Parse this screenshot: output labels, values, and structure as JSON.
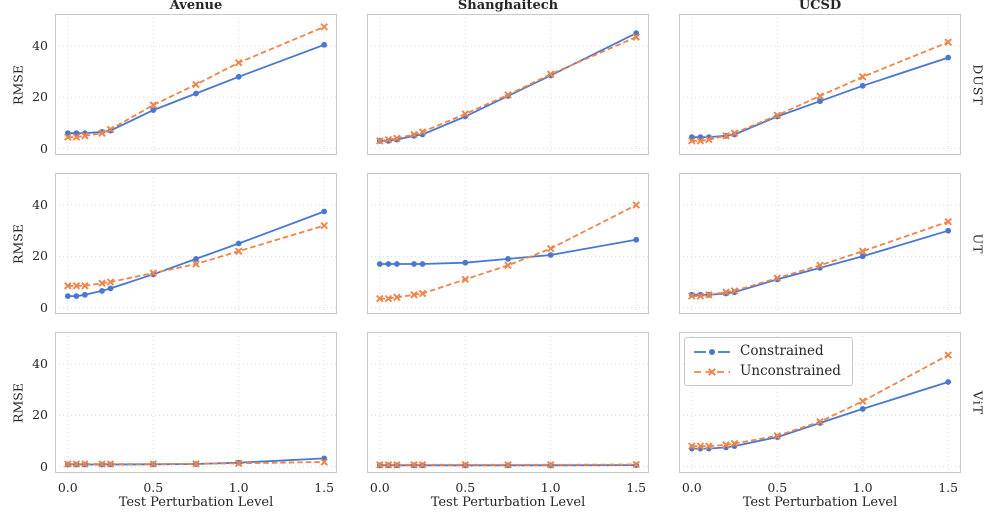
{
  "chart_data": {
    "type": "line",
    "layout": "3x3 grid of subplots, shared axes",
    "col_titles": [
      "Avenue",
      "Shanghaitech",
      "UCSD"
    ],
    "row_labels": [
      "DUST",
      "UT",
      "ViT"
    ],
    "xlabel": "Test Perturbation Level",
    "ylabel": "RMSE",
    "x": [
      0,
      0.05,
      0.1,
      0.2,
      0.25,
      0.5,
      0.75,
      1.0,
      1.5
    ],
    "xticks": [
      0,
      0.5,
      1.0,
      1.5
    ],
    "xtick_labels": [
      "0.0",
      "0.5",
      "1.0",
      "1.5"
    ],
    "yticks": [
      0,
      20,
      40
    ],
    "ytick_labels": [
      "0",
      "20",
      "40"
    ],
    "xlim": [
      -0.075,
      1.575
    ],
    "ylim": [
      -2.5,
      52.5
    ],
    "grid_on": true,
    "grid_style": "light dotted",
    "legend": {
      "location": "upper-left of bottom-right subplot",
      "entries": [
        {
          "label": "Constrained",
          "color": "#4878d0",
          "line": "solid",
          "marker": "circle"
        },
        {
          "label": "Unconstrained",
          "color": "#ee854a",
          "line": "dashed",
          "marker": "x"
        }
      ]
    },
    "cells": [
      {
        "dataset": "Avenue",
        "model": "DUST",
        "constrained": [
          6,
          6,
          6,
          6.5,
          7,
          15,
          21.5,
          28,
          40.5
        ],
        "unconstrained": [
          4.5,
          4.5,
          5,
          6,
          7.5,
          17,
          25,
          33.5,
          47.5
        ]
      },
      {
        "dataset": "Shanghaitech",
        "model": "DUST",
        "constrained": [
          3,
          3,
          3.5,
          5,
          5.5,
          12.5,
          20.5,
          28.5,
          45
        ],
        "unconstrained": [
          3,
          3.5,
          4,
          5.5,
          6.5,
          13.5,
          21,
          29,
          43.5
        ]
      },
      {
        "dataset": "UCSD",
        "model": "DUST",
        "constrained": [
          4.5,
          4.5,
          4.5,
          5,
          5.5,
          12.5,
          18.5,
          24.5,
          35.5
        ],
        "unconstrained": [
          3,
          3,
          3.5,
          5,
          6,
          13,
          20.5,
          28,
          41.5
        ]
      },
      {
        "dataset": "Avenue",
        "model": "UT",
        "constrained": [
          4.5,
          4.5,
          5,
          6.5,
          7.5,
          13,
          19,
          25,
          37.5
        ],
        "unconstrained": [
          8.5,
          8.5,
          8.5,
          9.5,
          10,
          13.5,
          17,
          22,
          32
        ]
      },
      {
        "dataset": "Shanghaitech",
        "model": "UT",
        "constrained": [
          17,
          17,
          17,
          17,
          17,
          17.5,
          19,
          20.5,
          26.5
        ],
        "unconstrained": [
          3.5,
          3.5,
          4,
          5,
          5.5,
          11,
          16.5,
          23,
          40
        ]
      },
      {
        "dataset": "UCSD",
        "model": "UT",
        "constrained": [
          5,
          5,
          5,
          5.5,
          6,
          11,
          15.5,
          20,
          30
        ],
        "unconstrained": [
          4.5,
          4.5,
          5,
          6,
          6.5,
          11.5,
          16.5,
          22,
          33.5
        ]
      },
      {
        "dataset": "Avenue",
        "model": "ViT",
        "constrained": [
          0.8,
          0.8,
          0.8,
          0.8,
          0.8,
          0.9,
          1,
          1.5,
          3.2
        ],
        "unconstrained": [
          1,
          1,
          1,
          1,
          1,
          1,
          1.1,
          1.3,
          1.8
        ]
      },
      {
        "dataset": "Shanghaitech",
        "model": "ViT",
        "constrained": [
          0.5,
          0.5,
          0.5,
          0.5,
          0.5,
          0.5,
          0.5,
          0.5,
          0.6
        ],
        "unconstrained": [
          0.7,
          0.7,
          0.7,
          0.7,
          0.7,
          0.7,
          0.7,
          0.7,
          0.8
        ]
      },
      {
        "dataset": "UCSD",
        "model": "ViT",
        "constrained": [
          7,
          7,
          7,
          7.5,
          8,
          11.5,
          17,
          22.5,
          33
        ],
        "unconstrained": [
          8,
          8,
          8,
          8.5,
          9,
          12,
          17.5,
          25.5,
          43.5
        ]
      }
    ]
  }
}
